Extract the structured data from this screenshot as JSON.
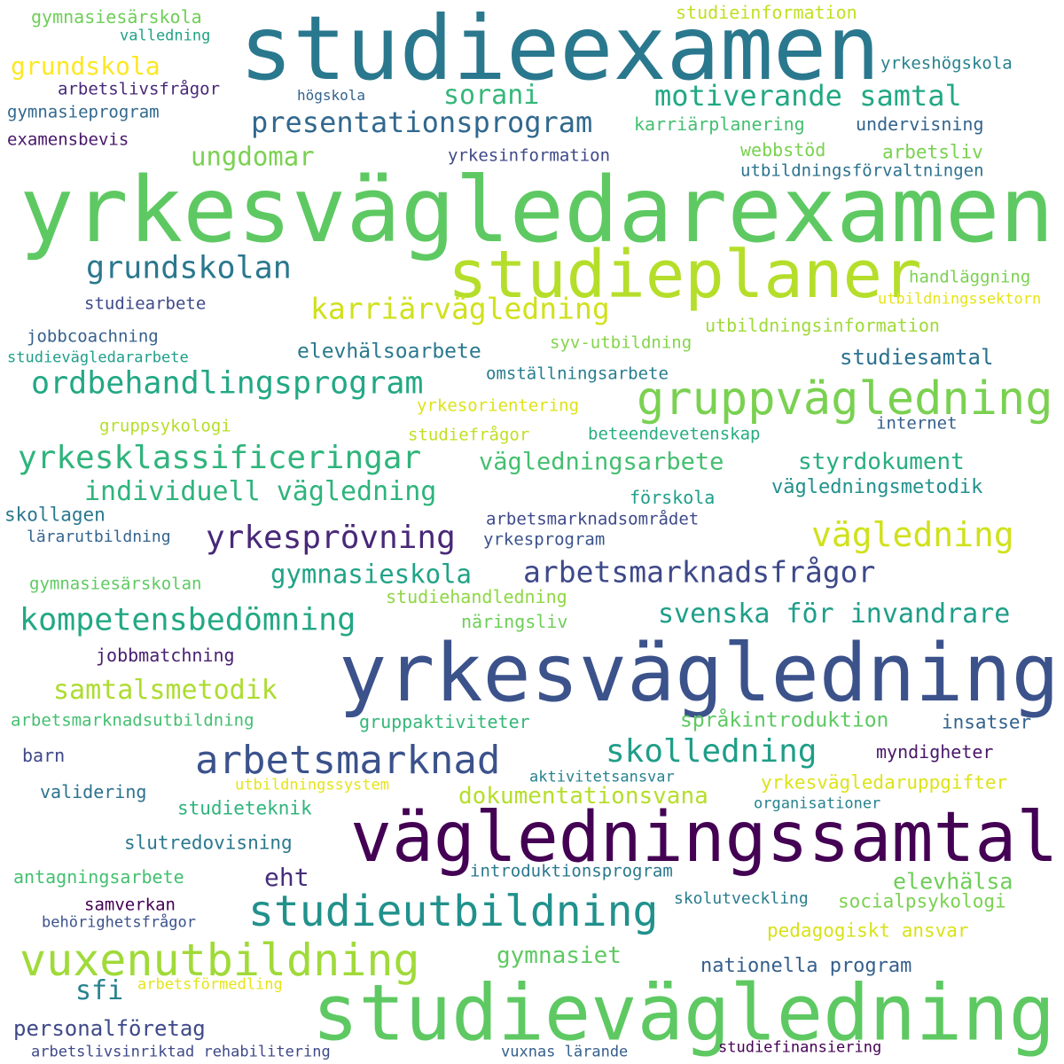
{
  "words": [
    {
      "text": "yrkesvägledarexamen",
      "color": "#5ec962"
    },
    {
      "text": "studieexamen",
      "color": "#2a788e"
    },
    {
      "text": "yrkesvägledning",
      "color": "#3b528b"
    },
    {
      "text": "vägledningssamtal",
      "color": "#440154"
    },
    {
      "text": "studievägledning",
      "color": "#5ec962"
    },
    {
      "text": "studieplaner",
      "color": "#b5de2b"
    },
    {
      "text": "gruppvägledning",
      "color": "#7ad151"
    },
    {
      "text": "studieutbildning",
      "color": "#21918c"
    },
    {
      "text": "vuxenutbildning",
      "color": "#a0da39"
    },
    {
      "text": "arbetsmarknad",
      "color": "#3b528b"
    },
    {
      "text": "yrkesklassificeringar",
      "color": "#2fb47c"
    },
    {
      "text": "ordbehandlingsprogram",
      "color": "#22a884"
    },
    {
      "text": "karriärvägledning",
      "color": "#d0e11c"
    },
    {
      "text": "grundskolan",
      "color": "#2a788e"
    },
    {
      "text": "yrkesprövning",
      "color": "#482878"
    },
    {
      "text": "vägledning",
      "color": "#d0e11c"
    },
    {
      "text": "kompetensbedömning",
      "color": "#22a884"
    },
    {
      "text": "arbetsmarknadsfrågor",
      "color": "#3e4989"
    },
    {
      "text": "skolledning",
      "color": "#1f9e89"
    },
    {
      "text": "presentationsprogram",
      "color": "#31688e"
    },
    {
      "text": "motiverande samtal",
      "color": "#22a884"
    },
    {
      "text": "individuell vägledning",
      "color": "#2fb47c"
    },
    {
      "text": "svenska för invandrare",
      "color": "#1f9e89"
    },
    {
      "text": "vägledningsarbete",
      "color": "#44bf70"
    },
    {
      "text": "gymnasieskola",
      "color": "#20a386"
    },
    {
      "text": "samtalsmetodik",
      "color": "#addc30"
    },
    {
      "text": "ungdomar",
      "color": "#7ad151"
    },
    {
      "text": "sorani",
      "color": "#35b779"
    },
    {
      "text": "styrdokument",
      "color": "#27ad81"
    },
    {
      "text": "grundskola",
      "color": "#fde725"
    },
    {
      "text": "dokumentationsvana",
      "color": "#b5de2b"
    },
    {
      "text": "elevhälsa",
      "color": "#6ece58"
    },
    {
      "text": "gymnasiet",
      "color": "#5ec962"
    },
    {
      "text": "studiesamtal",
      "color": "#2c728e"
    },
    {
      "text": "eht",
      "color": "#472d7b"
    },
    {
      "text": "sfi",
      "color": "#26828e"
    },
    {
      "text": "personalföretag",
      "color": "#3e4989"
    },
    {
      "text": "elevhälsoarbete",
      "color": "#2a788e"
    },
    {
      "text": "vägledningsmetodik",
      "color": "#21918c"
    },
    {
      "text": "språkintroduktion",
      "color": "#5ec962"
    },
    {
      "text": "yrkesvägledaruppgifter",
      "color": "#dde318"
    },
    {
      "text": "pedagogiskt ansvar",
      "color": "#d8e219"
    },
    {
      "text": "nationella program",
      "color": "#355f8d"
    },
    {
      "text": "socialpsykologi",
      "color": "#7ad151"
    },
    {
      "text": "studieteknik",
      "color": "#2fb47c"
    },
    {
      "text": "slutredovisning",
      "color": "#2a788e"
    },
    {
      "text": "antagningsarbete",
      "color": "#44bf70"
    },
    {
      "text": "samverkan",
      "color": "#440154"
    },
    {
      "text": "validering",
      "color": "#2c728e"
    },
    {
      "text": "myndigheter",
      "color": "#481769"
    },
    {
      "text": "insatser",
      "color": "#33638d"
    },
    {
      "text": "barn",
      "color": "#3e4989"
    },
    {
      "text": "jobbmatchning",
      "color": "#481f70"
    },
    {
      "text": "arbetsmarknadsutbildning",
      "color": "#44bf70"
    },
    {
      "text": "gruppaktiviteter",
      "color": "#35b779"
    },
    {
      "text": "näringsliv",
      "color": "#6ece58"
    },
    {
      "text": "studiehandledning",
      "color": "#8fd744"
    },
    {
      "text": "gymnasiesärskolan",
      "color": "#5ec962"
    },
    {
      "text": "skollagen",
      "color": "#2a788e"
    },
    {
      "text": "lärarutbildning",
      "color": "#33638d"
    },
    {
      "text": "arbetsmarknadsområdet",
      "color": "#3e4989"
    },
    {
      "text": "yrkesprogram",
      "color": "#3b528b"
    },
    {
      "text": "förskola",
      "color": "#1f9e89"
    },
    {
      "text": "beteendevetenskap",
      "color": "#27ad81"
    },
    {
      "text": "internet",
      "color": "#355f8d"
    },
    {
      "text": "gruppsykologi",
      "color": "#b5de2b"
    },
    {
      "text": "studiefrågor",
      "color": "#c2df23"
    },
    {
      "text": "yrkesorientering",
      "color": "#dde318"
    },
    {
      "text": "omställningsarbete",
      "color": "#287d8e"
    },
    {
      "text": "syv-utbildning",
      "color": "#84d44b"
    },
    {
      "text": "utbildningsinformation",
      "color": "#a0da39"
    },
    {
      "text": "studievägledararbete",
      "color": "#1f9e89"
    },
    {
      "text": "jobbcoachning",
      "color": "#355f8d"
    },
    {
      "text": "studiearbete",
      "color": "#3e4989"
    },
    {
      "text": "handläggning",
      "color": "#7ad151"
    },
    {
      "text": "utbildningssektorn",
      "color": "#e5e419"
    },
    {
      "text": "utbildningsförvaltningen",
      "color": "#2c728e"
    },
    {
      "text": "webbstöd",
      "color": "#7ad151"
    },
    {
      "text": "arbetsliv",
      "color": "#7ad151"
    },
    {
      "text": "yrkesinformation",
      "color": "#3e4989"
    },
    {
      "text": "karriärplanering",
      "color": "#44bf70"
    },
    {
      "text": "undervisning",
      "color": "#33638d"
    },
    {
      "text": "högskola",
      "color": "#33638d"
    },
    {
      "text": "arbetslivsfrågor",
      "color": "#482878"
    },
    {
      "text": "gymnasieprogram",
      "color": "#31688e"
    },
    {
      "text": "examensbevis",
      "color": "#481769"
    },
    {
      "text": "yrkeshögskola",
      "color": "#26828e"
    },
    {
      "text": "studieinformation",
      "color": "#c2df23"
    },
    {
      "text": "gymnasiesärskola",
      "color": "#6ece58"
    },
    {
      "text": "valledning",
      "color": "#20a386"
    },
    {
      "text": "introduktionsprogram",
      "color": "#2a788e"
    },
    {
      "text": "aktivitetsansvar",
      "color": "#26828e"
    },
    {
      "text": "utbildningssystem",
      "color": "#e5e419"
    },
    {
      "text": "organisationer",
      "color": "#26828e"
    },
    {
      "text": "skolutveckling",
      "color": "#287d8e"
    },
    {
      "text": "behörighetsfrågor",
      "color": "#3b528b"
    },
    {
      "text": "arbetsförmedling",
      "color": "#e5e419"
    },
    {
      "text": "arbetslivsinriktad rehabilitering",
      "color": "#3e4989"
    },
    {
      "text": "vuxnas lärande",
      "color": "#355f8d"
    },
    {
      "text": "studiefinansiering",
      "color": "#440154"
    }
  ]
}
